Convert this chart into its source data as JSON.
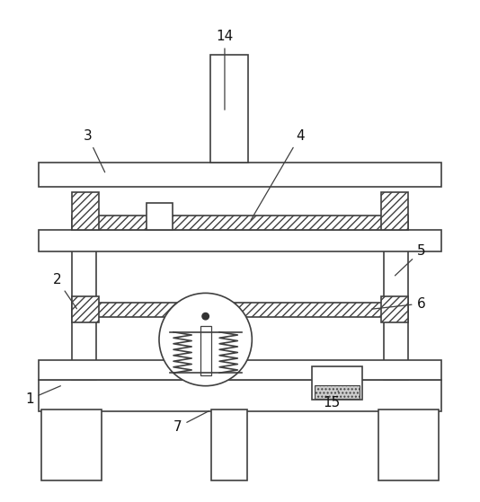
{
  "background_color": "#ffffff",
  "line_color": "#404040",
  "figsize": [
    5.34,
    5.59
  ],
  "dpi": 100
}
